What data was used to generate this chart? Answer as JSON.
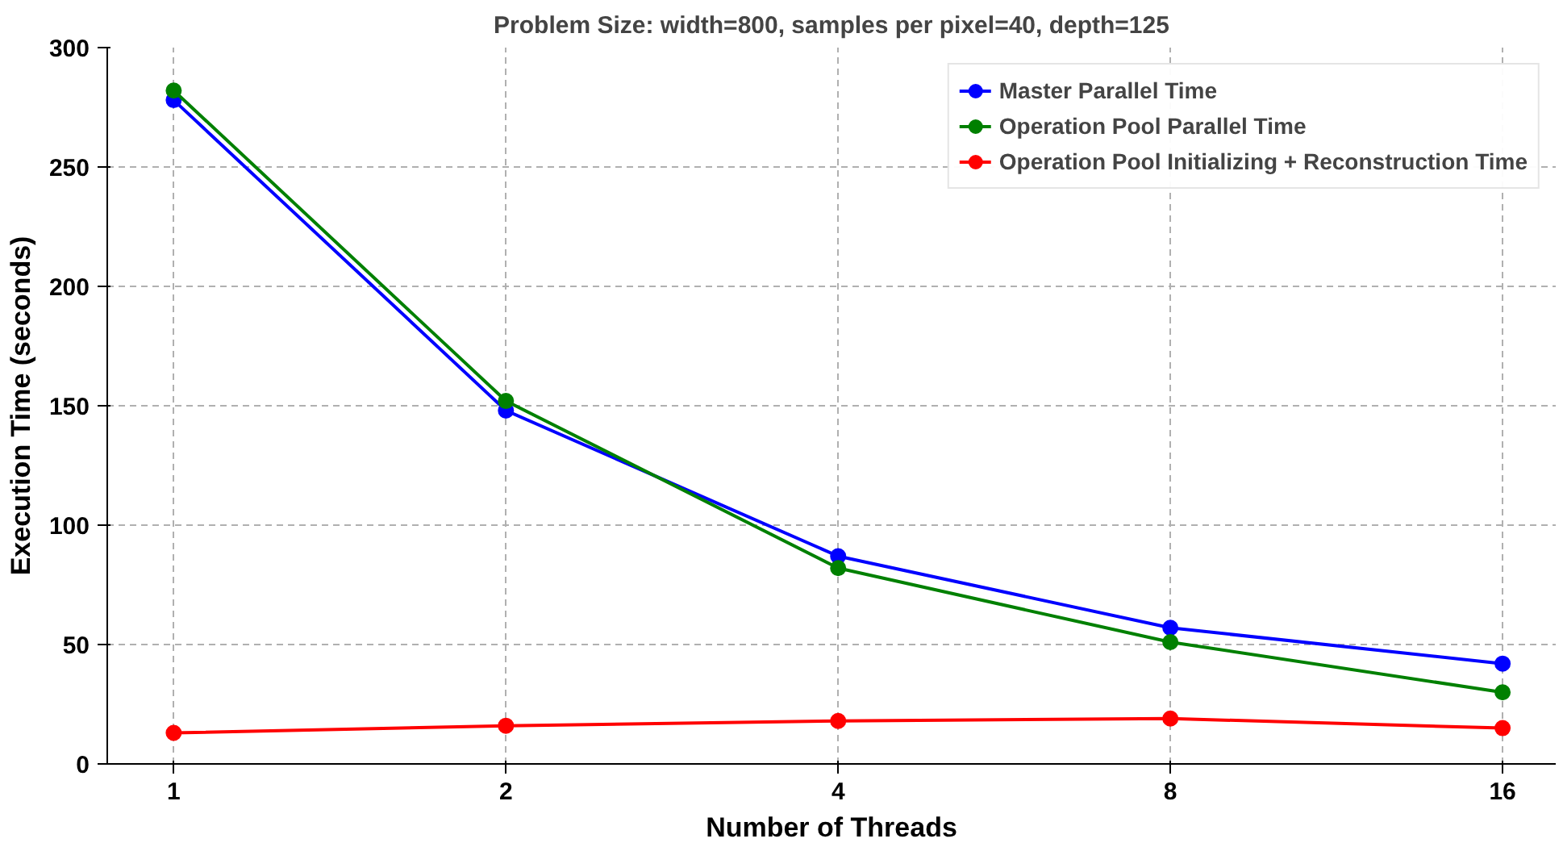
{
  "chart_data": {
    "type": "line",
    "title": "Problem Size: width=800, samples per pixel=40, depth=125",
    "xlabel": "Number of Threads",
    "ylabel": "Execution Time (seconds)",
    "categories": [
      "1",
      "2",
      "4",
      "8",
      "16"
    ],
    "series": [
      {
        "name": "Master Parallel Time",
        "color": "#0000ff",
        "values": [
          278,
          148,
          87,
          57,
          42
        ]
      },
      {
        "name": "Operation Pool Parallel Time",
        "color": "#008000",
        "values": [
          282,
          152,
          82,
          51,
          30
        ]
      },
      {
        "name": "Operation Pool Initializing + Reconstruction Time",
        "color": "#ff0000",
        "values": [
          13,
          16,
          18,
          19,
          15
        ]
      }
    ],
    "ylim": [
      0,
      300
    ],
    "yticks": [
      0,
      50,
      100,
      150,
      200,
      250,
      300
    ],
    "grid": true,
    "legend": "top right",
    "marker": "circle",
    "line_style": "solid"
  }
}
